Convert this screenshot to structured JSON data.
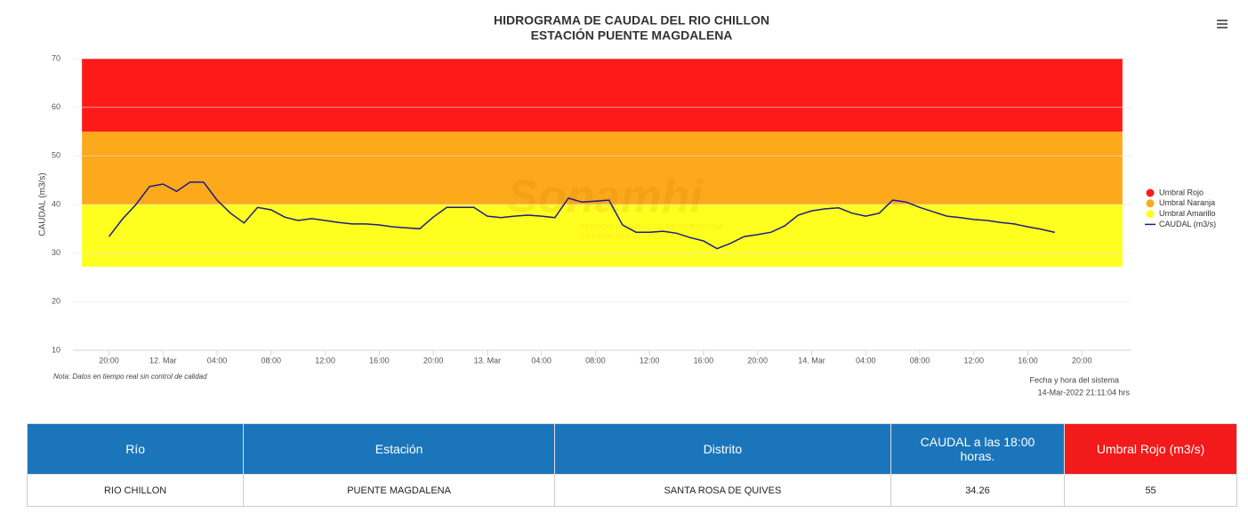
{
  "chart_data": {
    "type": "line",
    "title": "HIDROGRAMA DE CAUDAL DEL RIO CHILLON",
    "subtitle": "ESTACIÓN PUENTE MAGDALENA",
    "y_label": "CAUDAL (m3/s)",
    "note": "Nota: Datos en tiempo real sin control de calidad",
    "system_label": "Fecha y hora del sistema",
    "system_time": "14-Mar-2022 21:11:04 hrs",
    "watermark": [
      "Sonamhi",
      "SERVICIO NACIONAL DE METEOROLOGÍA",
      "E HIDROLOGÍA DEL PERÚ"
    ],
    "ylim": [
      10,
      70
    ],
    "yticks": [
      10,
      20,
      30,
      40,
      50,
      60,
      70
    ],
    "grid": true,
    "xlim": [
      "11 Mar 17:20",
      "14 Mar 23:40"
    ],
    "xticks": [
      {
        "value": "11 Mar 20:00",
        "label": "20:00"
      },
      {
        "value": "12 Mar 00:00",
        "label": "12. Mar"
      },
      {
        "value": "12 Mar 04:00",
        "label": "04:00"
      },
      {
        "value": "12 Mar 08:00",
        "label": "08:00"
      },
      {
        "value": "12 Mar 12:00",
        "label": "12:00"
      },
      {
        "value": "12 Mar 16:00",
        "label": "16:00"
      },
      {
        "value": "12 Mar 20:00",
        "label": "20:00"
      },
      {
        "value": "13 Mar 00:00",
        "label": "13. Mar"
      },
      {
        "value": "13 Mar 04:00",
        "label": "04:00"
      },
      {
        "value": "13 Mar 08:00",
        "label": "08:00"
      },
      {
        "value": "13 Mar 12:00",
        "label": "12:00"
      },
      {
        "value": "13 Mar 16:00",
        "label": "16:00"
      },
      {
        "value": "13 Mar 20:00",
        "label": "20:00"
      },
      {
        "value": "14 Mar 00:00",
        "label": "14. Mar"
      },
      {
        "value": "14 Mar 04:00",
        "label": "04:00"
      },
      {
        "value": "14 Mar 08:00",
        "label": "08:00"
      },
      {
        "value": "14 Mar 12:00",
        "label": "12:00"
      },
      {
        "value": "14 Mar 16:00",
        "label": "16:00"
      },
      {
        "value": "14 Mar 20:00",
        "label": "20:00"
      }
    ],
    "bands": [
      {
        "name": "Umbral Rojo",
        "color": "#ff1a1a",
        "from": 55,
        "to": 70,
        "xrange": [
          "11 Mar 18:00",
          "14 Mar 23:00"
        ]
      },
      {
        "name": "Umbral Naranja",
        "color": "#fda91c",
        "from": 40,
        "to": 55,
        "xrange": [
          "11 Mar 18:00",
          "14 Mar 23:00"
        ]
      },
      {
        "name": "Umbral Amarillo",
        "color": "#ffff1f",
        "from": 27.2,
        "to": 40,
        "xrange": [
          "11 Mar 18:00",
          "14 Mar 23:00"
        ]
      }
    ],
    "x": [
      "11 Mar 20:00",
      "11 Mar 21:00",
      "11 Mar 22:00",
      "11 Mar 23:00",
      "12 Mar 00:00",
      "12 Mar 01:00",
      "12 Mar 02:00",
      "12 Mar 03:00",
      "12 Mar 04:00",
      "12 Mar 05:00",
      "12 Mar 06:00",
      "12 Mar 07:00",
      "12 Mar 08:00",
      "12 Mar 09:00",
      "12 Mar 10:00",
      "12 Mar 11:00",
      "12 Mar 12:00",
      "12 Mar 13:00",
      "12 Mar 14:00",
      "12 Mar 15:00",
      "12 Mar 16:00",
      "12 Mar 17:00",
      "12 Mar 18:00",
      "12 Mar 19:00",
      "12 Mar 20:00",
      "12 Mar 21:00",
      "12 Mar 22:00",
      "12 Mar 23:00",
      "13 Mar 00:00",
      "13 Mar 01:00",
      "13 Mar 02:00",
      "13 Mar 03:00",
      "13 Mar 04:00",
      "13 Mar 05:00",
      "13 Mar 06:00",
      "13 Mar 07:00",
      "13 Mar 08:00",
      "13 Mar 09:00",
      "13 Mar 10:00",
      "13 Mar 11:00",
      "13 Mar 12:00",
      "13 Mar 13:00",
      "13 Mar 14:00",
      "13 Mar 15:00",
      "13 Mar 16:00",
      "13 Mar 17:00",
      "13 Mar 18:00",
      "13 Mar 19:00",
      "13 Mar 20:00",
      "13 Mar 21:00",
      "13 Mar 22:00",
      "13 Mar 23:00",
      "14 Mar 00:00",
      "14 Mar 01:00",
      "14 Mar 02:00",
      "14 Mar 03:00",
      "14 Mar 04:00",
      "14 Mar 05:00",
      "14 Mar 06:00",
      "14 Mar 07:00",
      "14 Mar 08:00",
      "14 Mar 09:00",
      "14 Mar 10:00",
      "14 Mar 11:00",
      "14 Mar 12:00",
      "14 Mar 13:00",
      "14 Mar 14:00",
      "14 Mar 15:00",
      "14 Mar 16:00",
      "14 Mar 17:00",
      "14 Mar 18:00"
    ],
    "series": [
      {
        "name": "CAUDAL (m3/s)",
        "color": "#1c1c8a",
        "values": [
          33.4,
          37.0,
          40.0,
          43.7,
          44.2,
          42.7,
          44.6,
          44.6,
          40.9,
          38.2,
          36.2,
          39.4,
          38.9,
          37.4,
          36.7,
          37.1,
          36.7,
          36.3,
          36.0,
          36.0,
          35.8,
          35.4,
          35.2,
          35.0,
          37.4,
          39.4,
          39.4,
          39.4,
          37.6,
          37.3,
          37.6,
          37.8,
          37.6,
          37.3,
          41.3,
          40.5,
          40.7,
          40.9,
          35.8,
          34.3,
          34.3,
          34.5,
          34.1,
          33.2,
          32.5,
          30.9,
          32.0,
          33.4,
          33.8,
          34.3,
          35.6,
          37.8,
          38.7,
          39.1,
          39.3,
          38.2,
          37.6,
          38.2,
          40.9,
          40.5,
          39.4,
          38.5,
          37.6,
          37.3,
          36.9,
          36.7,
          36.3,
          36.0,
          35.4,
          34.9,
          34.26
        ]
      }
    ]
  },
  "table": {
    "headers": [
      "Río",
      "Estación",
      "Distrito",
      "CAUDAL a las 18:00 horas.",
      "Umbral Rojo (m3/s)"
    ],
    "rows": [
      [
        "RIO CHILLON",
        "PUENTE MAGDALENA",
        "SANTA ROSA DE QUIVES",
        "34.26",
        "55"
      ]
    ]
  }
}
